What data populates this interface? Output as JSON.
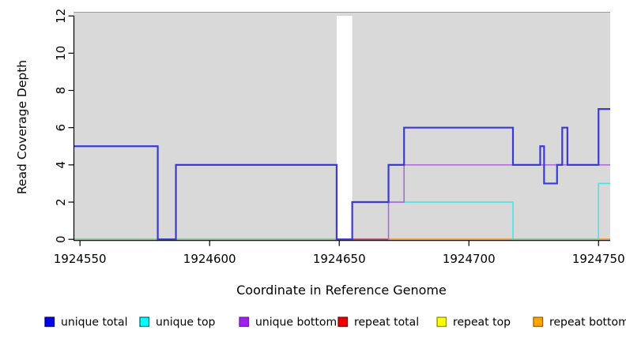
{
  "chart_data": {
    "type": "line",
    "subtype": "step-coverage",
    "title": "",
    "xlabel": "Coordinate in Reference Genome",
    "ylabel": "Read Coverage Depth",
    "xlim": [
      1924547.5,
      1924754.5
    ],
    "ylim": [
      0,
      12
    ],
    "x_ticks": [
      "1924550",
      "1924600",
      "1924650",
      "1924700",
      "1924750"
    ],
    "x_tick_values": [
      1924550,
      1924600,
      1924650,
      1924700,
      1924750
    ],
    "y_ticks": [
      "0",
      "2",
      "4",
      "6",
      "8",
      "10",
      "12"
    ],
    "y_tick_values": [
      0,
      2,
      4,
      6,
      8,
      10,
      12
    ],
    "grid": false,
    "plot_bg": "#D9D9D9",
    "page_bg": "#FFFFFF",
    "legend_position": "bottom",
    "gap_band": {
      "from": 1924649,
      "to": 1924655,
      "color": "#FFFFFF"
    },
    "series": [
      {
        "name": "unique total",
        "color": "#3B3BD1",
        "legend_color": "#0000EE",
        "legend_border": "#000080",
        "line_width": 2.2,
        "draw_zero_runs": true,
        "segments": [
          [
            1924547.5,
            1924580,
            5
          ],
          [
            1924580,
            1924587,
            0
          ],
          [
            1924587,
            1924649,
            4
          ],
          [
            1924649,
            1924655,
            0
          ],
          [
            1924655,
            1924669,
            2
          ],
          [
            1924669,
            1924675,
            4
          ],
          [
            1924675,
            1924717,
            6
          ],
          [
            1924717,
            1924727.5,
            4
          ],
          [
            1924727.5,
            1924729,
            5
          ],
          [
            1924729,
            1924734,
            3
          ],
          [
            1924734,
            1924736,
            4
          ],
          [
            1924736,
            1924738,
            6
          ],
          [
            1924738,
            1924750,
            4
          ],
          [
            1924750,
            1924754.5,
            7
          ]
        ]
      },
      {
        "name": "unique top",
        "color": "#55DEE2",
        "legend_color": "#00FFFF",
        "legend_border": "#007070",
        "line_width": 1.6,
        "draw_zero_runs": false,
        "segments": [
          [
            1924547.5,
            1924655,
            0
          ],
          [
            1924655,
            1924717,
            2
          ],
          [
            1924717,
            1924750,
            0
          ],
          [
            1924750,
            1924754.5,
            3
          ]
        ]
      },
      {
        "name": "unique bottom",
        "color": "#AF66DD",
        "legend_color": "#A020F0",
        "legend_border": "#701EB0",
        "line_width": 1.6,
        "draw_zero_runs": false,
        "segments": [
          [
            1924547.5,
            1924669,
            0
          ],
          [
            1924669,
            1924675,
            2
          ],
          [
            1924675,
            1924754.5,
            4
          ]
        ]
      },
      {
        "name": "repeat total",
        "color": "#DD0000",
        "legend_color": "#EE0000",
        "legend_border": "#900000",
        "line_width": 1.6,
        "draw_zero_runs": false,
        "segments": [
          [
            1924547.5,
            1924754.5,
            0
          ]
        ]
      },
      {
        "name": "repeat top",
        "color": "#E8E800",
        "legend_color": "#FFFF00",
        "legend_border": "#909000",
        "line_width": 1.6,
        "draw_zero_runs": false,
        "segments": [
          [
            1924547.5,
            1924754.5,
            0
          ]
        ]
      },
      {
        "name": "repeat bottom",
        "color": "#FF9614",
        "legend_color": "#FFA500",
        "legend_border": "#A06000",
        "line_width": 1.6,
        "draw_zero_runs": false,
        "segments": [
          [
            1924547.5,
            1924754.5,
            0
          ]
        ]
      }
    ],
    "baseline_overlap_segments": [
      [
        1924547.5,
        1924649,
        "#82C785"
      ],
      [
        1924655,
        1924669,
        "#C13A6B"
      ],
      [
        1924669,
        1924717,
        "#FF9614"
      ],
      [
        1924717,
        1924750,
        "#82C785"
      ],
      [
        1924750,
        1924754.5,
        "#FF9614"
      ]
    ]
  }
}
